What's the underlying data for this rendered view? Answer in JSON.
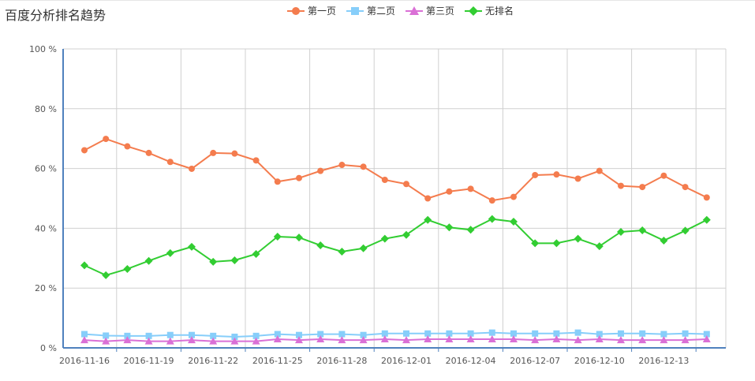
{
  "title": "百度分析排名趋势",
  "chart_data": {
    "type": "line",
    "title": "百度分析排名趋势",
    "xlabel": "",
    "ylabel": "",
    "ylim": [
      0,
      100
    ],
    "y_ticks": [
      "0 %",
      "20 %",
      "40 %",
      "60 %",
      "80 %",
      "100 %"
    ],
    "x_tick_labels": [
      "2016-11-16",
      "2016-11-19",
      "2016-11-22",
      "2016-11-25",
      "2016-11-28",
      "2016-12-01",
      "2016-12-04",
      "2016-12-07",
      "2016-12-10",
      "2016-12-13"
    ],
    "x": [
      "2016-11-16",
      "2016-11-17",
      "2016-11-18",
      "2016-11-19",
      "2016-11-20",
      "2016-11-21",
      "2016-11-22",
      "2016-11-23",
      "2016-11-24",
      "2016-11-25",
      "2016-11-26",
      "2016-11-27",
      "2016-11-28",
      "2016-11-29",
      "2016-11-30",
      "2016-12-01",
      "2016-12-02",
      "2016-12-03",
      "2016-12-04",
      "2016-12-05",
      "2016-12-06",
      "2016-12-07",
      "2016-12-08",
      "2016-12-09",
      "2016-12-10",
      "2016-12-11",
      "2016-12-12",
      "2016-12-13",
      "2016-12-14",
      "2016-12-15"
    ],
    "grid": true,
    "legend_position": "top-center",
    "series": [
      {
        "name": "第一页",
        "color": "#f47c4e",
        "marker": "circle",
        "values": [
          66.1,
          69.9,
          67.4,
          65.2,
          62.2,
          59.9,
          65.2,
          65.0,
          62.7,
          55.6,
          56.8,
          59.2,
          61.2,
          60.6,
          56.2,
          54.8,
          50.0,
          52.3,
          53.2,
          49.3,
          50.5,
          57.8,
          58.0,
          56.6,
          59.2,
          54.2,
          53.8,
          57.6,
          53.8,
          50.3
        ]
      },
      {
        "name": "第二页",
        "color": "#87cefa",
        "marker": "square",
        "values": [
          4.6,
          4.1,
          4.0,
          4.0,
          4.3,
          4.3,
          4.0,
          3.7,
          4.0,
          4.6,
          4.3,
          4.6,
          4.6,
          4.3,
          4.8,
          4.8,
          4.8,
          4.8,
          4.8,
          5.1,
          4.8,
          4.8,
          4.8,
          5.1,
          4.6,
          4.8,
          4.8,
          4.6,
          4.8,
          4.6
        ]
      },
      {
        "name": "第三页",
        "color": "#da70d6",
        "marker": "triangle",
        "values": [
          2.6,
          2.2,
          2.6,
          2.2,
          2.2,
          2.6,
          2.2,
          2.2,
          2.2,
          2.9,
          2.6,
          2.9,
          2.6,
          2.6,
          2.9,
          2.6,
          2.9,
          2.9,
          2.9,
          2.9,
          2.9,
          2.6,
          2.9,
          2.6,
          2.9,
          2.6,
          2.6,
          2.6,
          2.6,
          2.9
        ]
      },
      {
        "name": "无排名",
        "color": "#32cd32",
        "marker": "diamond",
        "values": [
          27.6,
          24.3,
          26.4,
          29.1,
          31.7,
          33.8,
          28.8,
          29.3,
          31.4,
          37.2,
          36.9,
          34.3,
          32.2,
          33.3,
          36.5,
          37.8,
          42.8,
          40.3,
          39.5,
          43.1,
          42.2,
          35.0,
          35.0,
          36.5,
          34.0,
          38.8,
          39.3,
          35.9,
          39.2,
          42.8
        ]
      }
    ]
  }
}
